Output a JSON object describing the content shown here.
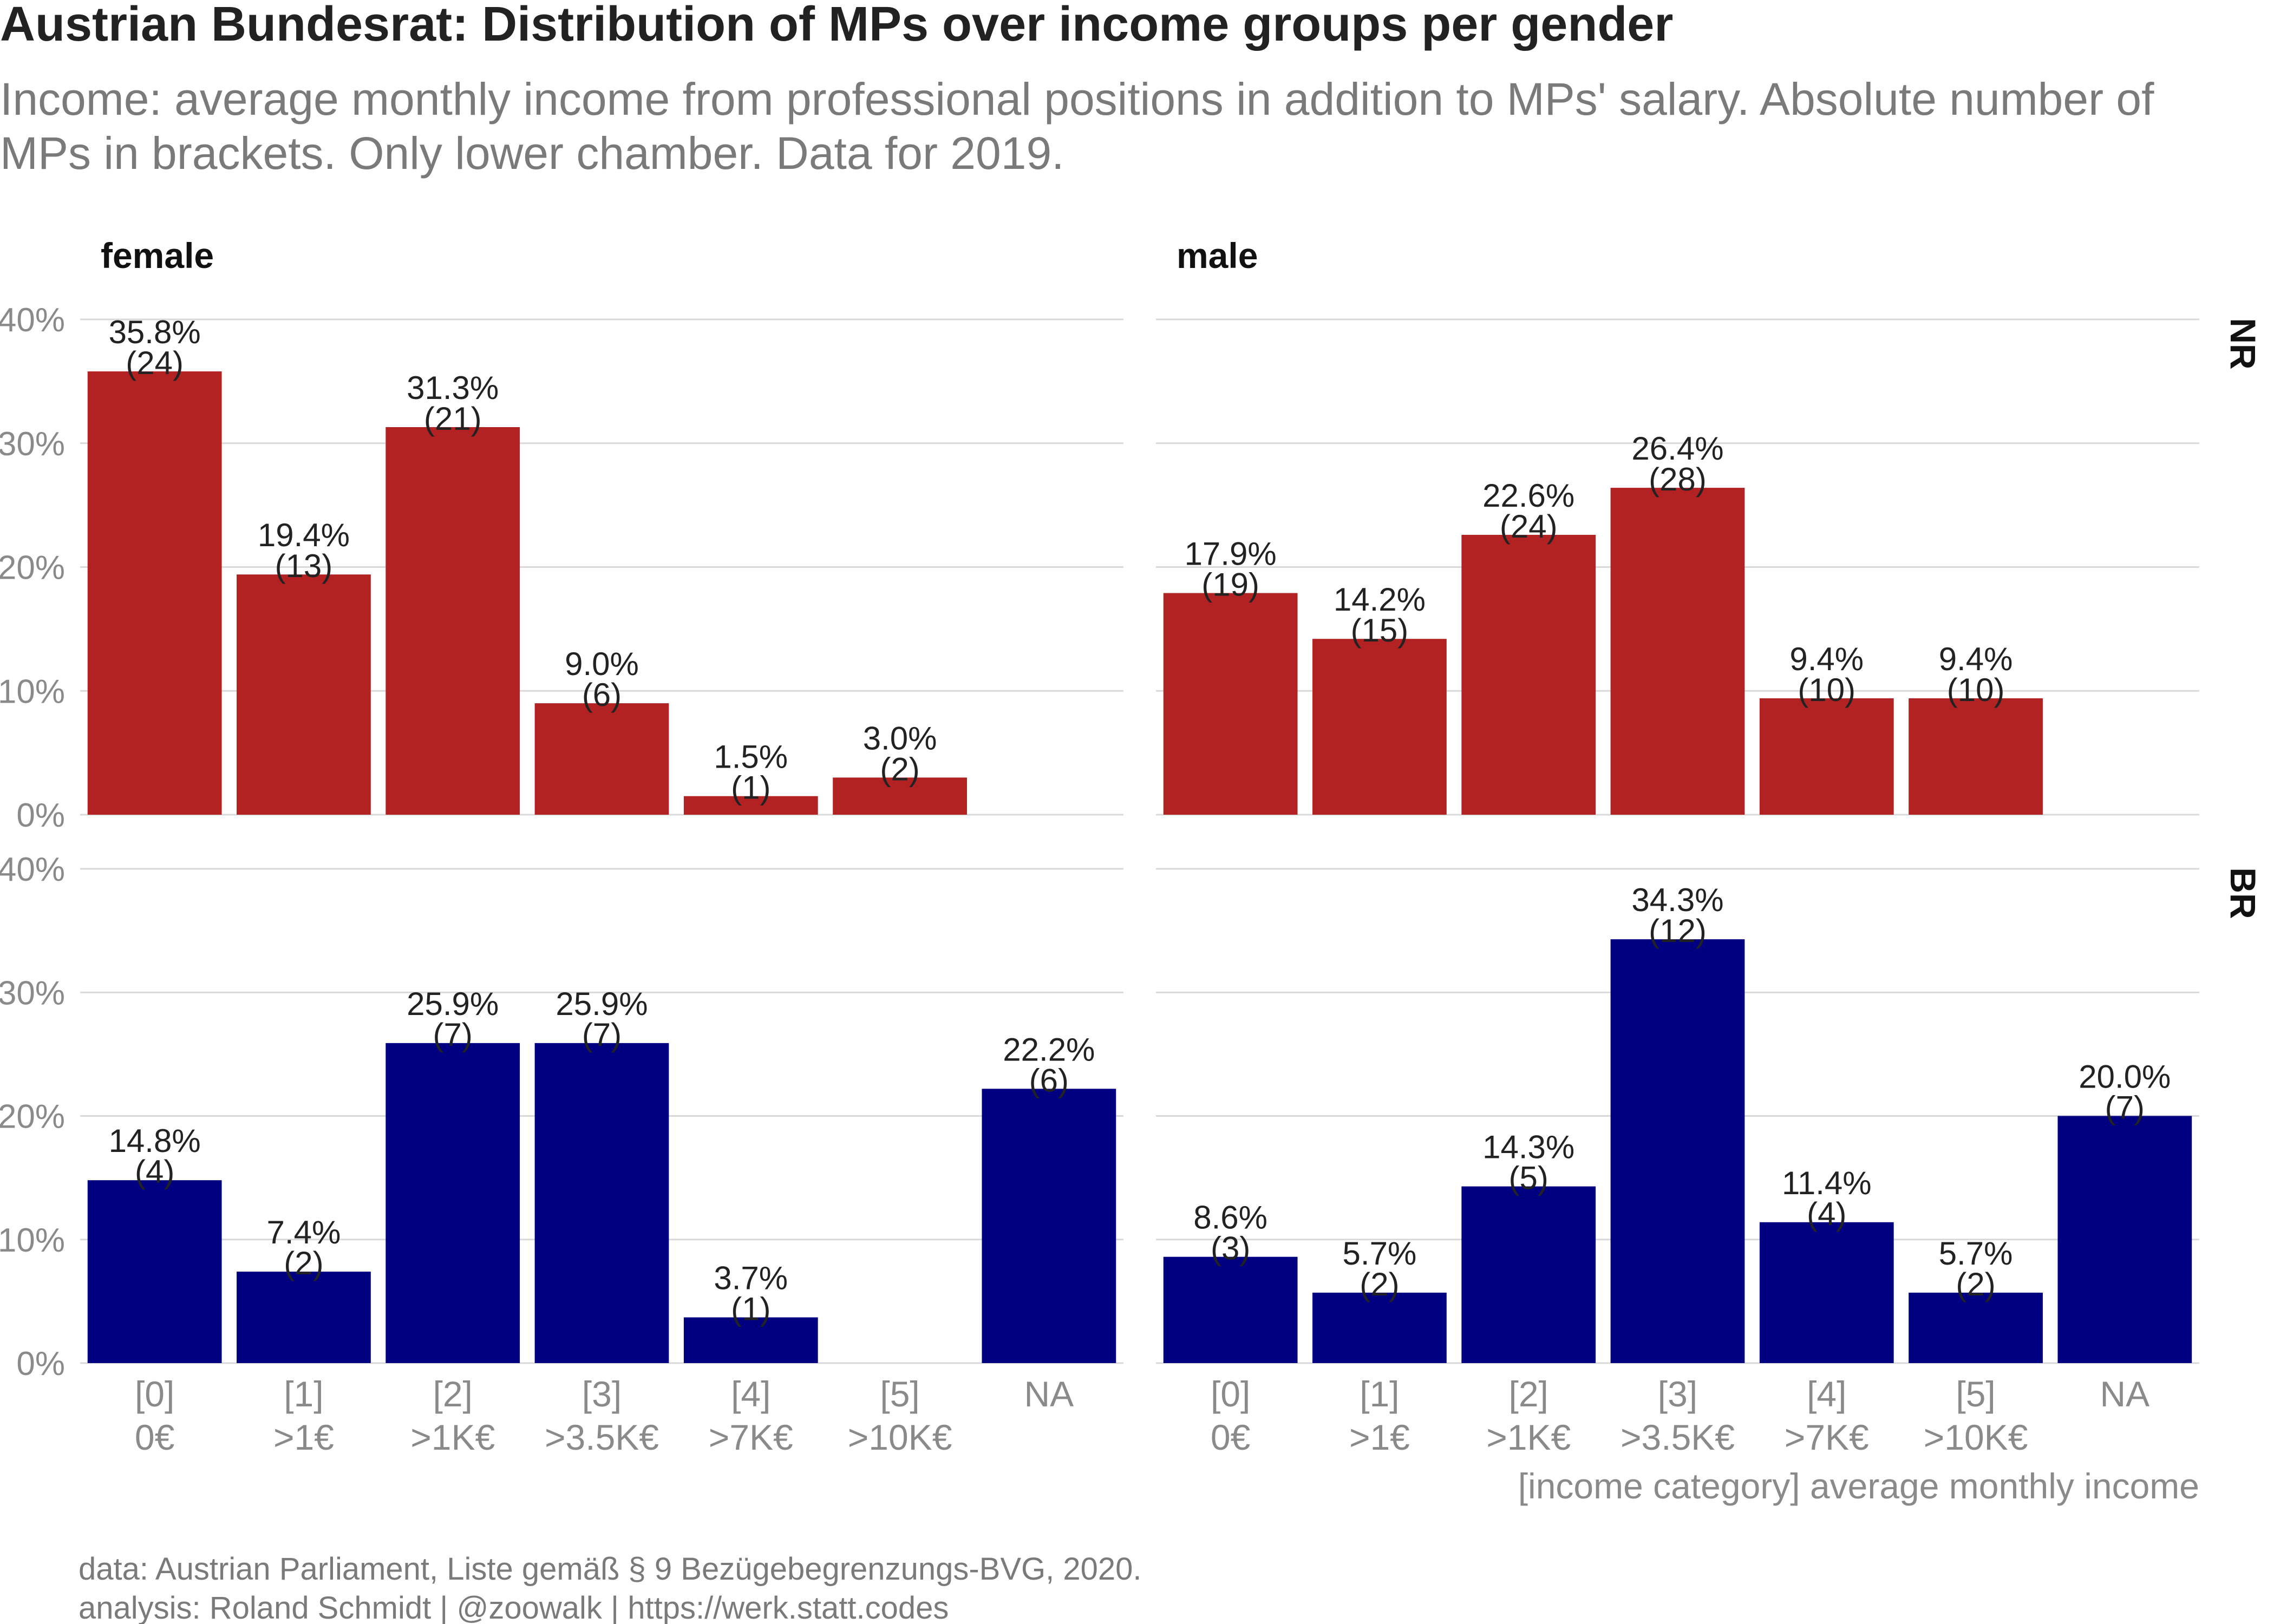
{
  "chart_data": {
    "type": "bar",
    "title": "Austrian Bundesrat: Distribution of MPs over income groups per gender",
    "subtitle": [
      "Income: average monthly income from professional positions in addition to MPs' salary. Absolute number of",
      "MPs in brackets. Only lower chamber. Data for 2019."
    ],
    "xlabel": "[income category] average monthly income",
    "ylabel": "",
    "ylim": [
      0,
      40
    ],
    "yticks": [
      0,
      10,
      20,
      30,
      40
    ],
    "ytick_format": "%",
    "grid": true,
    "categories": [
      "[0]\n0€",
      "[1]\n>1€",
      "[2]\n>1K€",
      "[3]\n>3.5K€",
      "[4]\n>7K€",
      "[5]\n>10K€",
      "NA"
    ],
    "columns": [
      "female",
      "male"
    ],
    "rows": [
      "NR",
      "BR"
    ],
    "colors": {
      "NR": "#b22222",
      "BR": "#000080"
    },
    "panels": [
      {
        "gender": "female",
        "chamber": "NR",
        "values": [
          35.8,
          19.4,
          31.3,
          9.0,
          1.5,
          3.0,
          null
        ],
        "counts": [
          24,
          13,
          21,
          6,
          1,
          2,
          null
        ]
      },
      {
        "gender": "male",
        "chamber": "NR",
        "values": [
          17.9,
          14.2,
          22.6,
          26.4,
          9.4,
          9.4,
          null
        ],
        "counts": [
          19,
          15,
          24,
          28,
          10,
          10,
          null
        ]
      },
      {
        "gender": "female",
        "chamber": "BR",
        "values": [
          14.8,
          7.4,
          25.9,
          25.9,
          3.7,
          null,
          22.2
        ],
        "counts": [
          4,
          2,
          7,
          7,
          1,
          null,
          6
        ]
      },
      {
        "gender": "male",
        "chamber": "BR",
        "values": [
          8.6,
          5.7,
          14.3,
          34.3,
          11.4,
          5.7,
          20.0
        ],
        "counts": [
          3,
          2,
          5,
          12,
          4,
          2,
          7
        ]
      }
    ],
    "caption": [
      "data: Austrian Parliament, Liste gemäß § 9 Bezügebegrenzungs-BVG, 2020.",
      "analysis: Roland Schmidt | @zoowalk | https://werk.statt.codes"
    ]
  }
}
